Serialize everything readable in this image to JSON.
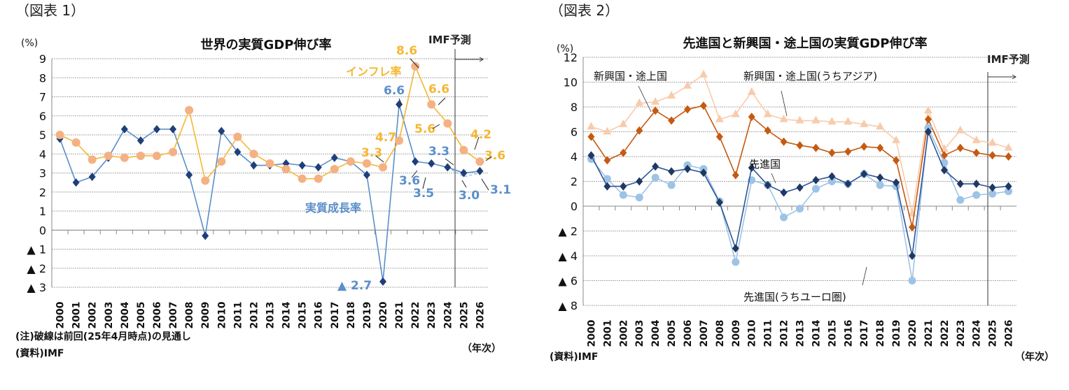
{
  "figures": [
    {
      "label": "（図表 1）",
      "note": "(注)破線は前回(25年4月時点)の見通し",
      "source": "(資料)IMF",
      "xunit": "（年次）",
      "forecast_label": "IMF予測"
    },
    {
      "label": "（図表 2）",
      "source": "(資料)IMF",
      "xunit": "（年次）",
      "forecast_label": "IMF予測"
    }
  ],
  "chart_data": [
    {
      "type": "line",
      "title": "世界の実質GDP伸び率",
      "ylabel": "(%)",
      "ylim": [
        -3,
        9
      ],
      "yticks": [
        9,
        8,
        7,
        6,
        5,
        4,
        3,
        2,
        1,
        0,
        -1,
        -2,
        -3
      ],
      "ytick_labels": [
        "9",
        "8",
        "7",
        "6",
        "5",
        "4",
        "3",
        "2",
        "1",
        "0",
        "▲ 1",
        "▲ 2",
        "▲ 3"
      ],
      "categories": [
        "2000",
        "2001",
        "2002",
        "2003",
        "2004",
        "2005",
        "2006",
        "2007",
        "2008",
        "2009",
        "2010",
        "2011",
        "2012",
        "2013",
        "2014",
        "2015",
        "2016",
        "2017",
        "2018",
        "2019",
        "2020",
        "2021",
        "2022",
        "2023",
        "2024",
        "2025",
        "2026"
      ],
      "grid": true,
      "forecast_from": "2025",
      "series": [
        {
          "name": "実質成長率",
          "color": "#5b8fc9",
          "marker_color": "#1f3f7a",
          "marker": "diamond",
          "values": [
            4.8,
            2.5,
            2.8,
            3.8,
            5.3,
            4.7,
            5.3,
            5.3,
            2.9,
            -0.3,
            5.2,
            4.1,
            3.4,
            3.4,
            3.5,
            3.4,
            3.3,
            3.8,
            3.6,
            2.9,
            -2.7,
            6.6,
            3.6,
            3.5,
            3.3,
            3.0,
            3.1
          ]
        },
        {
          "name": "インフレ率",
          "color": "#f5b731",
          "marker_color": "#f4b183",
          "marker": "circle",
          "values": [
            5.0,
            4.6,
            3.7,
            3.9,
            3.8,
            3.9,
            3.9,
            4.1,
            6.3,
            2.6,
            3.6,
            4.9,
            4.0,
            3.5,
            3.2,
            2.7,
            2.7,
            3.2,
            3.6,
            3.5,
            3.3,
            4.7,
            8.6,
            6.6,
            5.6,
            4.2,
            3.6
          ]
        }
      ],
      "annotations": [
        {
          "text": "8.6",
          "series": 1
        },
        {
          "text": "6.6",
          "series": 1
        },
        {
          "text": "5.6",
          "series": 1
        },
        {
          "text": "4.2",
          "series": 1
        },
        {
          "text": "3.6",
          "series": 1
        },
        {
          "text": "4.7",
          "series": 1
        },
        {
          "text": "3.3",
          "series": 1
        },
        {
          "text": "6.6",
          "series": 0
        },
        {
          "text": "3.3",
          "series": 0
        },
        {
          "text": "3.6",
          "series": 0
        },
        {
          "text": "3.5",
          "series": 0
        },
        {
          "text": "3.0",
          "series": 0
        },
        {
          "text": "3.1",
          "series": 0
        },
        {
          "text": "▲ 2.7",
          "series": 0
        }
      ]
    },
    {
      "type": "line",
      "title": "先進国と新興国・途上国の実質GDP伸び率",
      "ylabel": "(%)",
      "ylim": [
        -8,
        12
      ],
      "yticks": [
        12,
        10,
        8,
        6,
        4,
        2,
        0,
        -2,
        -4,
        -6,
        -8
      ],
      "ytick_labels": [
        "12",
        "10",
        "8",
        "6",
        "4",
        "2",
        "0",
        "▲ 2",
        "▲ 4",
        "▲ 6",
        "▲ 8"
      ],
      "categories": [
        "2000",
        "2001",
        "2002",
        "2003",
        "2004",
        "2005",
        "2006",
        "2007",
        "2008",
        "2009",
        "2010",
        "2011",
        "2012",
        "2013",
        "2014",
        "2015",
        "2016",
        "2017",
        "2018",
        "2019",
        "2020",
        "2021",
        "2022",
        "2023",
        "2024",
        "2025",
        "2026"
      ],
      "grid": true,
      "forecast_from": "2025",
      "series": [
        {
          "name": "新興国・途上国(うちアジア)",
          "color": "#f8cbad",
          "marker_color": "#f8cbad",
          "marker": "triangle",
          "values": [
            6.4,
            6.0,
            6.6,
            8.3,
            8.4,
            8.9,
            9.7,
            10.6,
            7.0,
            7.4,
            9.2,
            7.4,
            7.0,
            6.9,
            6.9,
            6.8,
            6.8,
            6.6,
            6.4,
            5.3,
            -0.6,
            7.7,
            4.6,
            6.1,
            5.3,
            5.1,
            4.7
          ]
        },
        {
          "name": "新興国・途上国",
          "color": "#c55a11",
          "marker_color": "#c55a11",
          "marker": "diamond",
          "values": [
            5.6,
            3.7,
            4.3,
            6.1,
            7.7,
            6.9,
            7.8,
            8.1,
            5.6,
            2.5,
            7.2,
            6.1,
            5.2,
            4.9,
            4.7,
            4.3,
            4.4,
            4.8,
            4.7,
            3.7,
            -1.7,
            7.0,
            4.1,
            4.7,
            4.3,
            4.1,
            4.0
          ]
        },
        {
          "name": "先進国(うちユーロ圏)",
          "color": "#9dc3e6",
          "marker_color": "#9dc3e6",
          "marker": "circle",
          "values": [
            3.8,
            2.2,
            0.9,
            0.7,
            2.3,
            1.7,
            3.3,
            3.0,
            0.4,
            -4.5,
            2.1,
            1.7,
            -0.9,
            -0.2,
            1.4,
            2.0,
            1.8,
            2.6,
            1.7,
            1.6,
            -6.0,
            6.3,
            3.5,
            0.5,
            0.9,
            1.0,
            1.2
          ]
        },
        {
          "name": "先進国",
          "color": "#2f5597",
          "marker_color": "#203864",
          "marker": "diamond",
          "values": [
            4.1,
            1.6,
            1.6,
            2.0,
            3.2,
            2.8,
            3.0,
            2.7,
            0.3,
            -3.4,
            3.1,
            1.7,
            1.1,
            1.5,
            2.1,
            2.4,
            1.8,
            2.6,
            2.3,
            1.9,
            -4.0,
            6.0,
            2.9,
            1.8,
            1.8,
            1.5,
            1.6
          ]
        }
      ]
    }
  ]
}
